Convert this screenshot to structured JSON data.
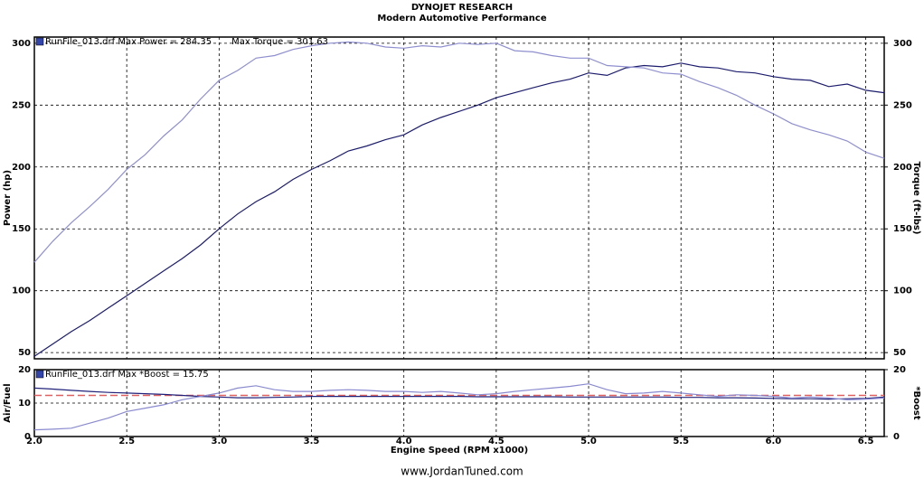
{
  "footer": "www.JordanTuned.com",
  "chart_data": [
    {
      "type": "line",
      "title": "DYNOJET RESEARCH",
      "subtitle": "Modern Automotive Performance",
      "legend": [
        "RunFile_013.drf Max Power = 284.35",
        "Max Torque = 301.63"
      ],
      "ylabel": "Power (hp)",
      "y2label": "Torque (ft-lbs)",
      "x": [
        2.0,
        2.1,
        2.2,
        2.3,
        2.4,
        2.5,
        2.6,
        2.7,
        2.8,
        2.9,
        3.0,
        3.1,
        3.2,
        3.3,
        3.4,
        3.5,
        3.6,
        3.7,
        3.8,
        3.9,
        4.0,
        4.1,
        4.2,
        4.3,
        4.4,
        4.5,
        4.6,
        4.7,
        4.8,
        4.9,
        5.0,
        5.1,
        5.2,
        5.3,
        5.4,
        5.5,
        5.6,
        5.7,
        5.8,
        5.9,
        6.0,
        6.1,
        6.2,
        6.3,
        6.4,
        6.5,
        6.6
      ],
      "series": [
        {
          "color": "#1c1c6e",
          "values": [
            47,
            57,
            67,
            76,
            86,
            96,
            106,
            116,
            126,
            137,
            150,
            162,
            172,
            180,
            190,
            198,
            205,
            213,
            217,
            222,
            226,
            234,
            240,
            245,
            250,
            256,
            260,
            264,
            268,
            271,
            276,
            274,
            280,
            282,
            281,
            284,
            281,
            280,
            277,
            276,
            273,
            271,
            270,
            265,
            267,
            262,
            260
          ]
        },
        {
          "color": "#8f8fd0",
          "axis": "y2",
          "values": [
            123,
            140,
            155,
            168,
            182,
            198,
            210,
            225,
            238,
            255,
            270,
            278,
            288,
            290,
            295,
            298,
            300,
            301,
            300,
            297,
            296,
            298,
            297,
            300,
            299,
            300,
            294,
            293,
            290,
            288,
            288,
            282,
            281,
            280,
            276,
            275,
            269,
            264,
            258,
            250,
            243,
            235,
            230,
            226,
            221,
            212,
            207
          ]
        }
      ],
      "xlim": [
        2,
        6.6
      ],
      "xticks": [
        2,
        2.5,
        3,
        3.5,
        4,
        4.5,
        5,
        5.5,
        6,
        6.5
      ],
      "show_xtick_labels": false,
      "ylim": [
        45,
        305
      ],
      "yticks": [
        50,
        100,
        150,
        200,
        250,
        300
      ],
      "y2lim": [
        45,
        305
      ],
      "y2ticks": [
        50,
        100,
        150,
        200,
        250,
        300
      ],
      "grid": true
    },
    {
      "type": "line",
      "legend": [
        "RunFile_013.drf Max *Boost = 15.75"
      ],
      "ylabel": "Air/Fuel",
      "y2label": "*Boost",
      "xlabel": "Engine Speed (RPM x1000)",
      "x": [
        2.0,
        2.1,
        2.2,
        2.3,
        2.4,
        2.5,
        2.6,
        2.7,
        2.8,
        2.9,
        3.0,
        3.1,
        3.2,
        3.3,
        3.4,
        3.5,
        3.6,
        3.7,
        3.8,
        3.9,
        4.0,
        4.1,
        4.2,
        4.3,
        4.4,
        4.5,
        4.6,
        4.7,
        4.8,
        4.9,
        5.0,
        5.1,
        5.2,
        5.3,
        5.4,
        5.5,
        5.6,
        5.7,
        5.8,
        5.9,
        6.0,
        6.1,
        6.2,
        6.3,
        6.4,
        6.5,
        6.6
      ],
      "series": [
        {
          "color": "#22227a",
          "values": [
            14.5,
            14.2,
            13.8,
            13.5,
            13.2,
            13.0,
            12.8,
            12.6,
            12.3,
            12.0,
            11.8,
            11.6,
            11.6,
            11.7,
            11.8,
            12.0,
            12.0,
            12.0,
            12.0,
            12.0,
            12.0,
            12.0,
            12.0,
            12.0,
            11.9,
            11.9,
            11.9,
            11.9,
            11.9,
            11.8,
            11.8,
            11.8,
            11.8,
            11.8,
            11.8,
            11.7,
            11.7,
            11.6,
            11.6,
            11.5,
            11.4,
            11.3,
            11.3,
            11.2,
            11.3,
            11.4,
            11.8
          ]
        },
        {
          "color": "#8a8ad0",
          "axis": "y2",
          "values": [
            2.0,
            2.2,
            2.5,
            4.0,
            5.5,
            7.5,
            8.5,
            9.5,
            11.0,
            12.0,
            13.0,
            14.5,
            15.2,
            14.0,
            13.5,
            13.5,
            13.8,
            14.0,
            13.8,
            13.5,
            13.5,
            13.2,
            13.5,
            13.0,
            12.5,
            12.8,
            13.5,
            14.0,
            14.5,
            15.0,
            15.75,
            14.0,
            12.8,
            13.0,
            13.5,
            13.0,
            12.5,
            12.0,
            12.5,
            12.3,
            12.0,
            11.5,
            11.8,
            11.5,
            11.0,
            11.2,
            11.5
          ]
        }
      ],
      "reference_line": {
        "value": 12.3,
        "color": "#e06060"
      },
      "xlim": [
        2,
        6.6
      ],
      "xticks": [
        {
          "value": 2,
          "label": "2.0"
        },
        2.5,
        {
          "value": 3,
          "label": "3.0"
        },
        3.5,
        {
          "value": 4,
          "label": "4.0"
        },
        4.5,
        {
          "value": 5,
          "label": "5.0"
        },
        5.5,
        {
          "value": 6,
          "label": "6.0"
        },
        6.5
      ],
      "show_xtick_labels": true,
      "ylim": [
        0,
        20
      ],
      "yticks": [
        0,
        10,
        20
      ],
      "y2lim": [
        0,
        20
      ],
      "y2ticks": [
        0,
        20
      ],
      "grid": true
    }
  ]
}
